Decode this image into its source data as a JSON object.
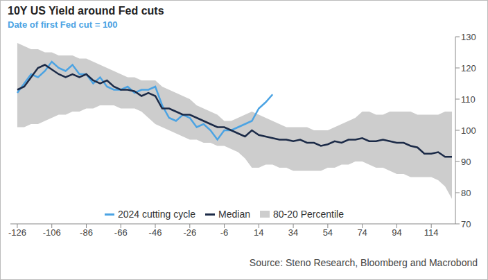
{
  "chart_data": {
    "type": "line",
    "title": "10Y US Yield around Fed cuts",
    "subtitle": "Date of first Fed cut = 100",
    "source": "Source: Steno Research, Bloomberg and Macrobond",
    "x": [
      -126,
      -122,
      -118,
      -114,
      -110,
      -106,
      -102,
      -98,
      -94,
      -90,
      -86,
      -82,
      -78,
      -74,
      -70,
      -66,
      -62,
      -58,
      -54,
      -50,
      -46,
      -42,
      -38,
      -34,
      -30,
      -26,
      -22,
      -18,
      -14,
      -10,
      -6,
      -2,
      2,
      6,
      10,
      14,
      18,
      22,
      26,
      30,
      34,
      38,
      42,
      46,
      50,
      54,
      58,
      62,
      66,
      70,
      74,
      78,
      82,
      86,
      90,
      94,
      98,
      102,
      106,
      110,
      114,
      118,
      122,
      126
    ],
    "xlim": [
      -130,
      128
    ],
    "xticks": [
      -126,
      -106,
      -86,
      -66,
      -46,
      -26,
      -6,
      14,
      34,
      54,
      74,
      94,
      114
    ],
    "ylim": [
      70,
      130
    ],
    "yticks": [
      70,
      80,
      90,
      100,
      110,
      120,
      130
    ],
    "grid": false,
    "legend": "bottom",
    "series": [
      {
        "name": "2024 cutting cycle",
        "type": "line",
        "color": "#4ba3e3",
        "values": [
          112,
          115,
          118,
          117,
          119,
          122,
          120,
          119,
          121,
          118,
          118,
          115,
          117,
          114,
          113,
          113,
          114,
          112,
          113,
          113,
          114,
          108,
          104,
          103,
          105,
          104,
          101,
          102,
          100,
          97,
          100,
          100,
          101,
          102,
          103,
          107,
          109,
          111.5,
          null,
          null,
          null,
          null,
          null,
          null,
          null,
          null,
          null,
          null,
          null,
          null,
          null,
          null,
          null,
          null,
          null,
          null,
          null,
          null,
          null,
          null,
          null,
          null,
          null,
          null
        ]
      },
      {
        "name": "Median",
        "type": "line",
        "color": "#1b2a47",
        "values": [
          113,
          114,
          117,
          120,
          121,
          119.5,
          118,
          117,
          118,
          117,
          118,
          116,
          115,
          116,
          114,
          113,
          113,
          112.5,
          111,
          112,
          111,
          107,
          107,
          106,
          105,
          105,
          104,
          103,
          102,
          101,
          101,
          100,
          99,
          98,
          100,
          98.5,
          98,
          97.5,
          97,
          97,
          96.5,
          97,
          96,
          96,
          95,
          95.5,
          96.5,
          96,
          97,
          97,
          97.5,
          96.5,
          96.5,
          97,
          96.5,
          96,
          96,
          95,
          94.5,
          92.5,
          92.5,
          93,
          91.5,
          91.5
        ]
      },
      {
        "name": "80-20 Percentile",
        "type": "area",
        "color": "#cdcdcd",
        "values": [
          [
            101,
            128
          ],
          [
            101,
            127
          ],
          [
            102,
            126
          ],
          [
            102,
            126
          ],
          [
            103,
            125
          ],
          [
            104,
            125
          ],
          [
            105,
            124
          ],
          [
            105,
            124
          ],
          [
            106,
            124
          ],
          [
            106,
            123
          ],
          [
            107,
            123
          ],
          [
            107,
            122
          ],
          [
            108,
            121
          ],
          [
            108,
            120
          ],
          [
            108,
            119
          ],
          [
            107,
            118
          ],
          [
            107,
            117
          ],
          [
            107,
            117
          ],
          [
            106,
            116
          ],
          [
            104,
            116
          ],
          [
            102,
            116
          ],
          [
            101,
            114
          ],
          [
            100,
            113
          ],
          [
            99,
            112
          ],
          [
            98,
            111
          ],
          [
            97,
            110
          ],
          [
            97,
            108
          ],
          [
            96,
            107
          ],
          [
            96,
            106
          ],
          [
            95,
            105
          ],
          [
            95,
            103
          ],
          [
            94,
            103
          ],
          [
            93,
            104
          ],
          [
            91,
            105
          ],
          [
            88,
            106
          ],
          [
            88,
            105
          ],
          [
            89,
            104
          ],
          [
            89,
            103
          ],
          [
            88,
            102
          ],
          [
            88,
            101
          ],
          [
            87,
            101
          ],
          [
            87,
            101
          ],
          [
            87,
            101
          ],
          [
            87,
            100
          ],
          [
            87,
            100
          ],
          [
            88,
            100
          ],
          [
            88,
            101
          ],
          [
            89,
            102
          ],
          [
            89,
            103
          ],
          [
            90,
            104
          ],
          [
            90,
            106
          ],
          [
            89,
            106
          ],
          [
            88,
            105
          ],
          [
            88,
            105
          ],
          [
            87,
            106
          ],
          [
            86,
            106
          ],
          [
            86,
            106
          ],
          [
            85,
            106
          ],
          [
            85,
            105
          ],
          [
            85,
            105
          ],
          [
            85,
            105
          ],
          [
            84,
            105
          ],
          [
            82,
            106
          ],
          [
            78,
            106
          ]
        ]
      }
    ]
  }
}
